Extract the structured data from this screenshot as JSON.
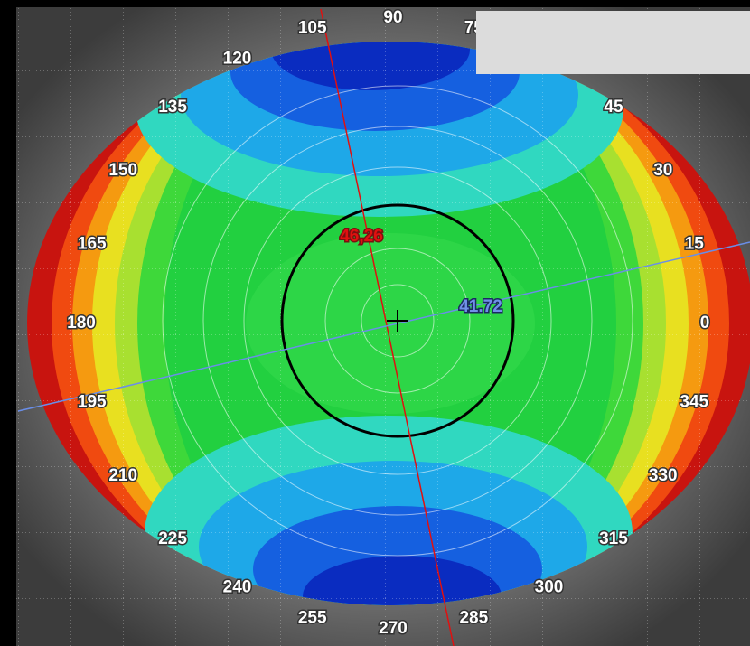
{
  "axis_labels": [
    0,
    15,
    30,
    45,
    75,
    90,
    105,
    120,
    135,
    150,
    165,
    180,
    195,
    210,
    225,
    240,
    255,
    270,
    285,
    300,
    315,
    330,
    345
  ],
  "readings": {
    "steep": "46,26",
    "flat": "41.72"
  }
}
